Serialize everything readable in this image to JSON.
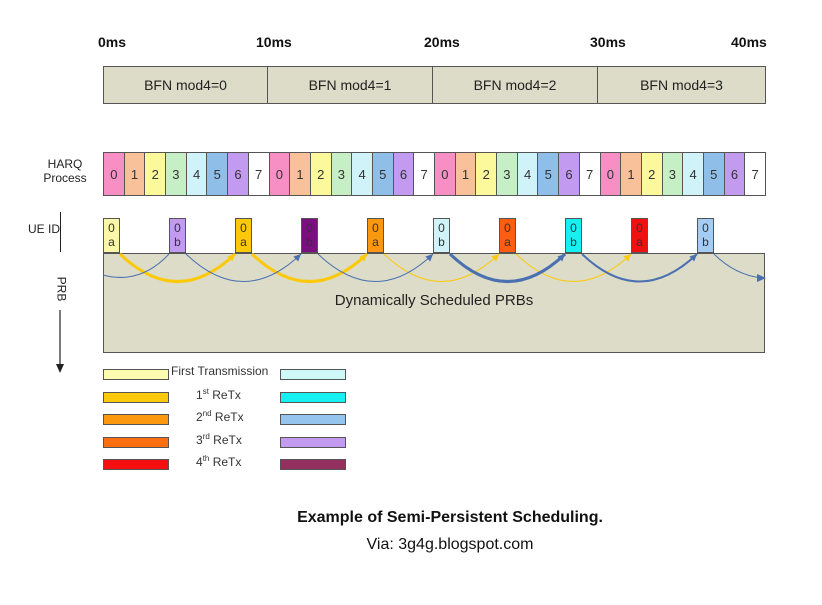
{
  "time_labels": [
    "0ms",
    "10ms",
    "20ms",
    "30ms",
    "40ms"
  ],
  "bfn_segments": [
    "BFN mod4=0",
    "BFN mod4=1",
    "BFN mod4=2",
    "BFN mod4=3"
  ],
  "harq": {
    "label_line1": "HARQ",
    "label_line2": "Process",
    "processes": [
      "0",
      "1",
      "2",
      "3",
      "4",
      "5",
      "6",
      "7"
    ],
    "repeats": 4,
    "colors": [
      "#f78fc5",
      "#f9c199",
      "#fbf99b",
      "#c6efc6",
      "#cff3f8",
      "#8fbfe9",
      "#c29af0",
      "#ffffff"
    ]
  },
  "ue_label": "UE ID",
  "prb_label": "PRB",
  "ue_boxes": [
    {
      "top": "0",
      "bottom": "a",
      "color": "#fbf7a8"
    },
    {
      "top": "0",
      "bottom": "b",
      "color": "#c29af0"
    },
    {
      "top": "0",
      "bottom": "a",
      "color": "#fcc90a"
    },
    {
      "top": "0",
      "bottom": "b",
      "color": "#7a0f7f"
    },
    {
      "top": "0",
      "bottom": "a",
      "color": "#fb9810"
    },
    {
      "top": "0",
      "bottom": "b",
      "color": "#cff3f8"
    },
    {
      "top": "0",
      "bottom": "a",
      "color": "#fb5e10"
    },
    {
      "top": "0",
      "bottom": "b",
      "color": "#16f0f0"
    },
    {
      "top": "0",
      "bottom": "a",
      "color": "#f01010"
    },
    {
      "top": "0",
      "bottom": "b",
      "color": "#a5cdf3"
    }
  ],
  "prb_region_label": "Dynamically Scheduled PRBs",
  "legend": [
    {
      "label": "First Transmission",
      "sup": "",
      "left_color": "#fdfbb0",
      "right_color": "#cff8f8"
    },
    {
      "label": "1",
      "sup": "st",
      "suffix": " ReTx",
      "left_color": "#fcc90a",
      "right_color": "#16f0f0"
    },
    {
      "label": "2",
      "sup": "nd",
      "suffix": " ReTx",
      "left_color": "#fb9810",
      "right_color": "#95c4ef"
    },
    {
      "label": "3",
      "sup": "rd",
      "suffix": " ReTx",
      "left_color": "#fb6f10",
      "right_color": "#c29af0"
    },
    {
      "label": "4",
      "sup": "th",
      "suffix": " ReTx",
      "left_color": "#f41010",
      "right_color": "#943060"
    }
  ],
  "caption": "Example of Semi-Persistent Scheduling.",
  "credit": "Via: 3g4g.blogspot.com",
  "colors": {
    "prb_fill": "#dcdcc8",
    "arrow_a": "#fcc90a",
    "arrow_b": "#4a70b0"
  }
}
